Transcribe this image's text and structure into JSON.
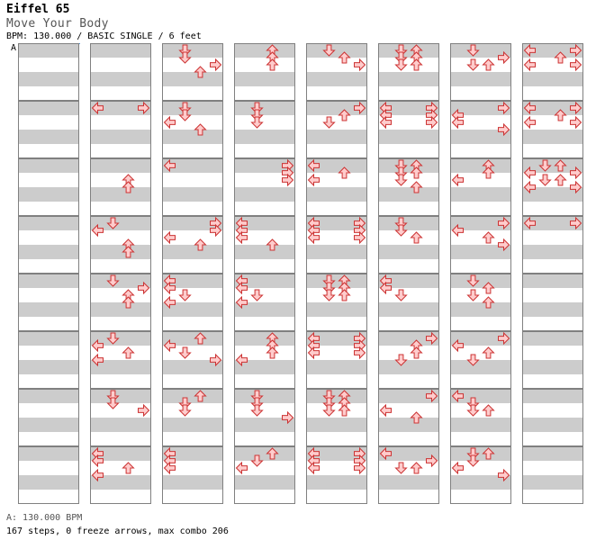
{
  "song": {
    "artist": "Eiffel 65",
    "title": "Move Your Body",
    "info": "BPM: 130.000 / BASIC SINGLE / 6 feet"
  },
  "bpm_marker": "A",
  "legend": "A: 130.000 BPM",
  "stats": "167 steps, 0 freeze arrows, max combo 206",
  "colors": {
    "stripe": "#cccccc",
    "lane_bg": "#ffffff",
    "border": "#808080",
    "arrow_fill": "#ffcccc",
    "arrow_stroke": "#cc3333",
    "bpm_line": "#4a90d9"
  },
  "icons": {
    "left": "arrow-left-icon",
    "down": "arrow-down-icon",
    "up": "arrow-up-icon",
    "right": "arrow-right-icon"
  },
  "chart_data": {
    "type": "step-chart",
    "lanes": [
      "left",
      "down",
      "up",
      "right"
    ],
    "rows_per_beat": 2,
    "beats_per_measure": 4,
    "measures_per_column": 8,
    "columns": [
      [],
      [
        {
          "row": 8,
          "dirs": [
            "left",
            "right"
          ]
        },
        {
          "row": 17,
          "dirs": [
            "up"
          ]
        },
        {
          "row": 18,
          "dirs": [
            "up"
          ]
        },
        {
          "row": 25,
          "dirs": [
            "up"
          ]
        },
        {
          "row": 26,
          "dirs": [
            "up"
          ]
        },
        {
          "row": 27,
          "dirs": [
            "up"
          ]
        },
        {
          "row": 28,
          "dirs": [
            "up"
          ]
        },
        {
          "row": 25,
          "dirs": []
        },
        {
          "row": 24,
          "dirs": []
        },
        {
          "row": 19,
          "dirs": []
        }
      ]
    ]
  }
}
